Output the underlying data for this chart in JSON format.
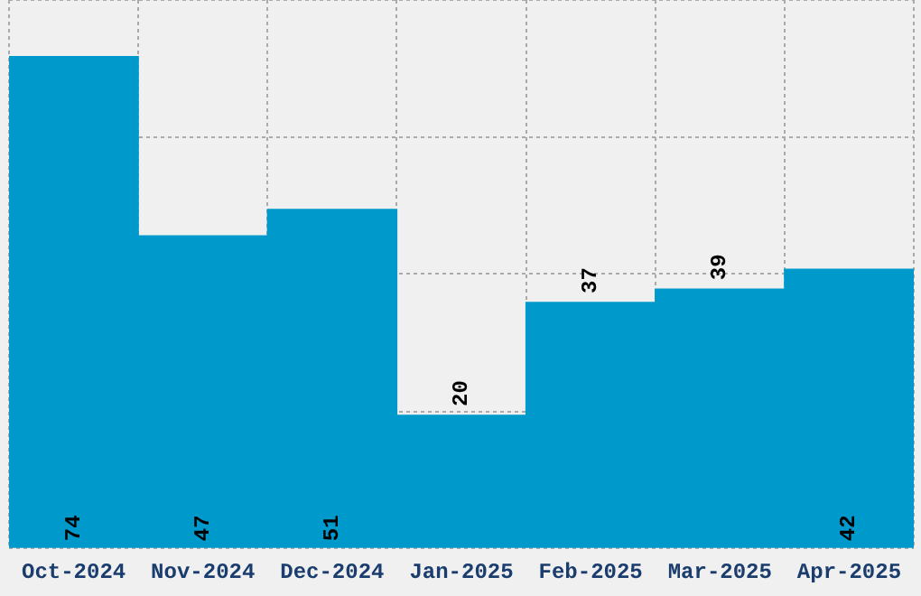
{
  "chart_data": {
    "type": "bar",
    "categories": [
      "Oct-2024",
      "Nov-2024",
      "Dec-2024",
      "Jan-2025",
      "Feb-2025",
      "Mar-2025",
      "Apr-2025"
    ],
    "values": [
      74,
      47,
      51,
      20,
      37,
      39,
      42
    ],
    "color": "#0099cc",
    "ylim": [
      0,
      82.5
    ],
    "yticks": [
      {
        "value": 0,
        "label": null
      },
      {
        "value": 20.6,
        "label": null
      },
      {
        "value": 41.3,
        "label": null
      },
      {
        "value": 61.9,
        "label": null
      },
      {
        "value": 82.5,
        "label": null
      }
    ],
    "grid": true,
    "tick_labels": "x",
    "data_labels": true
  }
}
